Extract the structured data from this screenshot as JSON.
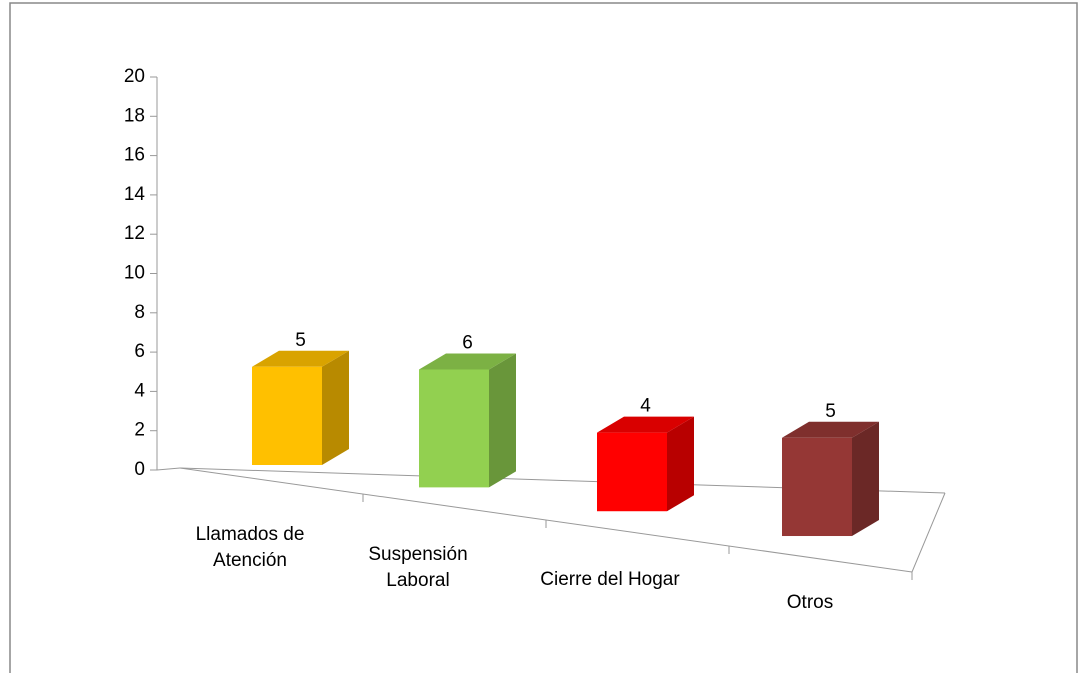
{
  "chart_data": {
    "type": "bar3d",
    "categories": [
      "Llamados de Atención",
      "Suspensión Laboral",
      "Cierre del Hogar",
      "Otros"
    ],
    "values": [
      5,
      6,
      4,
      5
    ],
    "colors": [
      "#FFC000",
      "#92D050",
      "#FF0000",
      "#953735"
    ],
    "ylim": [
      0,
      20
    ],
    "yticks": [
      0,
      2,
      4,
      6,
      8,
      10,
      12,
      14,
      16,
      18,
      20
    ]
  }
}
